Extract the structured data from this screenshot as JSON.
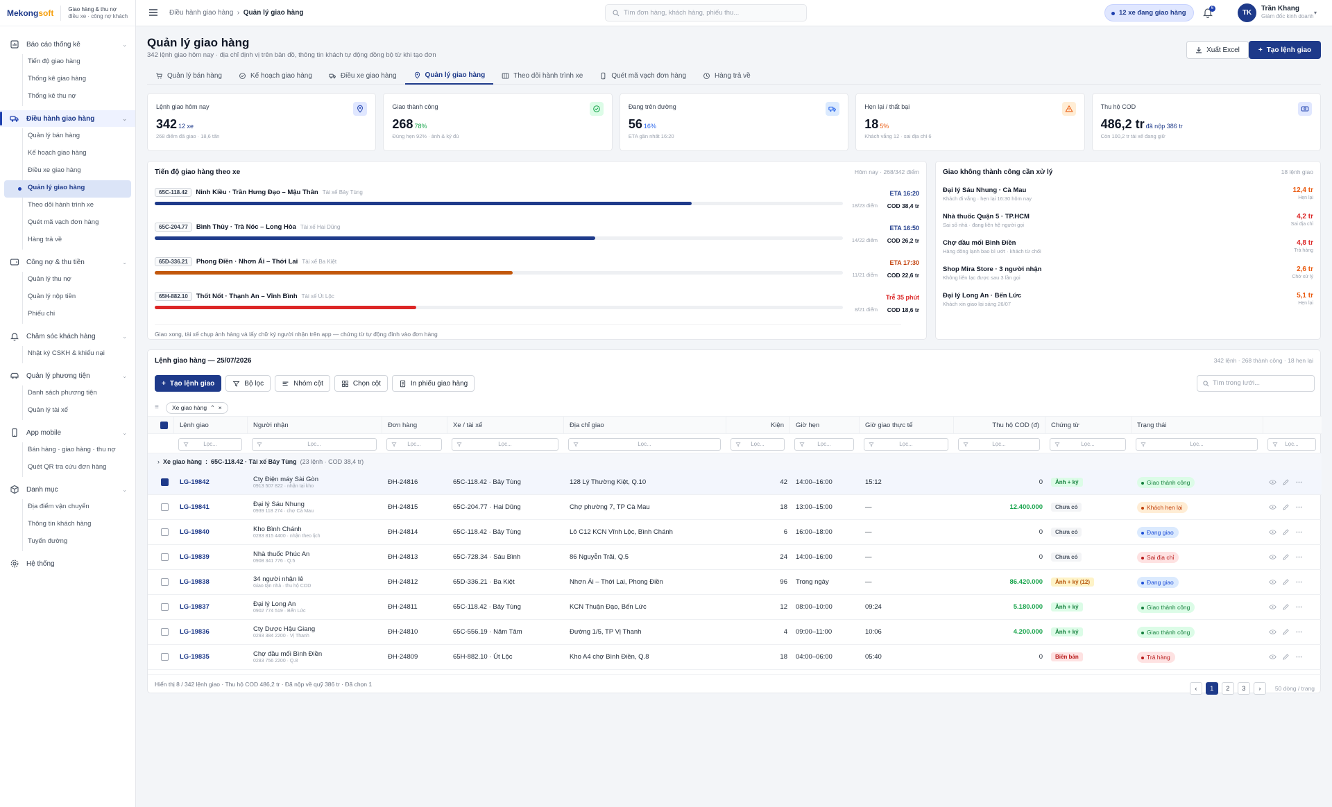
{
  "brand": {
    "logo_a": "Mekong",
    "logo_b": "soft",
    "line1": "Giao hàng & thu nợ",
    "line2": "điều xe · công nợ khách"
  },
  "sidebar": [
    {
      "label": "Báo cáo thống kê",
      "icon": "chart-icon",
      "items": [
        "Tiến độ giao hàng",
        "Thống kê giao hàng",
        "Thống kê thu nợ"
      ]
    },
    {
      "label": "Điều hành giao hàng",
      "icon": "truck-icon",
      "active": true,
      "items": [
        "Quản lý bán hàng",
        "Kế hoạch giao hàng",
        "Điều xe giao hàng",
        "Quản lý giao hàng",
        "Theo dõi hành trình xe",
        "Quét mã vạch đơn hàng",
        "Hàng trả về"
      ],
      "active_item": 3
    },
    {
      "label": "Công nợ & thu tiền",
      "icon": "wallet-icon",
      "items": [
        "Quản lý thu nợ",
        "Quản lý nộp tiền",
        "Phiếu chi"
      ]
    },
    {
      "label": "Chăm sóc khách hàng",
      "icon": "bell-icon",
      "items": [
        "Nhật ký CSKH & khiếu nại"
      ]
    },
    {
      "label": "Quản lý phương tiện",
      "icon": "vehicle-icon",
      "items": [
        "Danh sách phương tiện",
        "Quản lý tài xế"
      ]
    },
    {
      "label": "App mobile",
      "icon": "phone-icon",
      "items": [
        "Bán hàng · giao hàng · thu nợ",
        "Quét QR tra cứu đơn hàng"
      ]
    },
    {
      "label": "Danh mục",
      "icon": "box-icon",
      "items": [
        "Địa điểm vận chuyển",
        "Thông tin khách hàng",
        "Tuyến đường"
      ]
    },
    {
      "label": "Hệ thống",
      "icon": "gear-icon",
      "items": []
    }
  ],
  "topbar": {
    "crumb1": "Điều hành giao hàng",
    "crumb2": "Quản lý giao hàng",
    "search_placeholder": "Tìm đơn hàng, khách hàng, phiếu thu...",
    "live": "12 xe đang giao hàng",
    "bell_count": "6",
    "avatar": "TK",
    "user_name": "Trần Khang",
    "user_role": "Giám đốc kinh doanh"
  },
  "page": {
    "title": "Quản lý giao hàng",
    "subtitle": "342 lệnh giao hôm nay · địa chỉ định vị trên bản đồ, thông tin khách tự động đồng bộ từ khi tạo đơn",
    "export": "Xuất Excel",
    "create": "Tạo lệnh giao"
  },
  "tabs": [
    {
      "label": "Quản lý bán hàng",
      "icon": "cart-icon"
    },
    {
      "label": "Kế hoạch giao hàng",
      "icon": "check-circle-icon"
    },
    {
      "label": "Điều xe giao hàng",
      "icon": "truck-icon"
    },
    {
      "label": "Quản lý giao hàng",
      "icon": "pin-icon",
      "active": true
    },
    {
      "label": "Theo dõi hành trình xe",
      "icon": "map-icon"
    },
    {
      "label": "Quét mã vạch đơn hàng",
      "icon": "phone-icon"
    },
    {
      "label": "Hàng trả về",
      "icon": "return-icon"
    }
  ],
  "kpis": [
    {
      "label": "Lệnh giao hôm nay",
      "value": "342",
      "extra": "12 xe",
      "note": "268 điểm đã giao · 18,6 tấn",
      "extra_color": "#1e3a8a",
      "icon": "pin-icon",
      "icon_bg": "#e0e7ff",
      "icon_color": "#1e40af"
    },
    {
      "label": "Giao thành công",
      "value": "268",
      "extra": "78%",
      "note": "Đúng hẹn 92% · ảnh & ký đủ",
      "extra_color": "#16a34a",
      "icon": "check-circle-icon",
      "icon_bg": "#dcfce7",
      "icon_color": "#16a34a"
    },
    {
      "label": "Đang trên đường",
      "value": "56",
      "extra": "16%",
      "note": "ETA gần nhất 16:20",
      "extra_color": "#2563eb",
      "icon": "truck-icon",
      "icon_bg": "#dbeafe",
      "icon_color": "#2563eb"
    },
    {
      "label": "Hẹn lại / thất bại",
      "value": "18",
      "extra": "5%",
      "note": "Khách vắng 12 · sai địa chỉ 6",
      "extra_color": "#ea580c",
      "icon": "warning-icon",
      "icon_bg": "#ffedd5",
      "icon_color": "#ea580c"
    },
    {
      "label": "Thu hộ COD",
      "value": "486,2 tr",
      "extra": "đã nộp 386 tr",
      "note": "Còn 100,2 tr tài xế đang giữ",
      "extra_color": "#1e3a8a",
      "icon": "money-icon",
      "icon_bg": "#e0e7ff",
      "icon_color": "#1e40af"
    }
  ],
  "progress": {
    "title": "Tiến độ giao hàng theo xe",
    "right": "Hôm nay · 268/342 điểm",
    "footer": "Giao xong, tài xế chụp ảnh hàng và lấy chữ ký người nhận trên app — chứng từ tự động đính vào đơn hàng",
    "routes": [
      {
        "plate": "65C-118.42",
        "name": "Ninh Kiều · Trần Hưng Đạo – Mậu Thân",
        "driver": "Tài xế Bảy Tùng",
        "eta": "ETA 16:20",
        "eta_color": "#1e3a8a",
        "count": "18/23 điểm",
        "cod": "COD 38,4 tr",
        "pct": 0.78,
        "color": "#1e3a8a"
      },
      {
        "plate": "65C-204.77",
        "name": "Bình Thủy · Trà Nóc – Long Hòa",
        "driver": "Tài xế Hai Dũng",
        "eta": "ETA 16:50",
        "eta_color": "#1e3a8a",
        "count": "14/22 điểm",
        "cod": "COD 26,2 tr",
        "pct": 0.64,
        "color": "#1e3a8a"
      },
      {
        "plate": "65D-336.21",
        "name": "Phong Điền · Nhơn Ái – Thới Lai",
        "driver": "Tài xế Ba Kiệt",
        "eta": "ETA 17:30",
        "eta_color": "#c2410c",
        "count": "11/21 điểm",
        "cod": "COD 22,6 tr",
        "pct": 0.52,
        "color": "#c2570c"
      },
      {
        "plate": "65H-882.10",
        "name": "Thốt Nốt · Thạnh An – Vĩnh Bình",
        "driver": "Tài xế Út Lộc",
        "eta": "Trễ 35 phút",
        "eta_color": "#dc2626",
        "count": "8/21 điểm",
        "cod": "COD 18,6 tr",
        "pct": 0.38,
        "color": "#dc2626"
      }
    ]
  },
  "failed": {
    "title": "Giao không thành công cần xử lý",
    "right": "18 lệnh giao",
    "items": [
      {
        "name": "Đại lý Sáu Nhung · Cà Mau",
        "desc": "Khách đi vắng · hẹn lại 16:30 hôm nay",
        "amount": "12,4 tr",
        "status": "Hẹn lại",
        "color": "#ea580c"
      },
      {
        "name": "Nhà thuốc Quận 5 · TP.HCM",
        "desc": "Sai số nhà · đang liên hệ người gọi",
        "amount": "4,2 tr",
        "status": "Sai địa chỉ",
        "color": "#dc2626"
      },
      {
        "name": "Chợ đầu mối Bình Điền",
        "desc": "Hàng đông lạnh bao bì ướt · khách từ chối",
        "amount": "4,8 tr",
        "status": "Trả hàng",
        "color": "#dc2626"
      },
      {
        "name": "Shop Mira Store · 3 người nhận",
        "desc": "Không liên lạc được sau 3 lần gọi",
        "amount": "2,6 tr",
        "status": "Chờ xử lý",
        "color": "#ea580c"
      },
      {
        "name": "Đại lý Long An · Bến Lức",
        "desc": "Khách xin giao lại sáng 26/07",
        "amount": "5,1 tr",
        "status": "Hẹn lại",
        "color": "#ea580c"
      }
    ]
  },
  "grid": {
    "title": "Lệnh giao hàng — 25/07/2026",
    "right": "342 lệnh · 268 thành công · 18 hẹn lại",
    "tools": [
      "Tạo lệnh giao",
      "Bộ lọc",
      "Nhóm cột",
      "Chọn cột",
      "In phiếu giao hàng"
    ],
    "search_placeholder": "Tìm trong lưới...",
    "chip": "Xe giao hàng",
    "filter_placeholder": "Lọc...",
    "columns": [
      "Lệnh giao",
      "Người nhận",
      "Đơn hàng",
      "Xe / tài xế",
      "Địa chỉ giao",
      "Kiện",
      "Giờ hẹn",
      "Giờ giao thực tế",
      "Thu hộ COD (đ)",
      "Chứng từ",
      "Trạng thái"
    ],
    "group": {
      "label": "Xe giao hàng",
      "value": "65C-118.42 · Tài xế Bảy Tùng",
      "meta": "(23 lệnh · COD 38,4 tr)"
    },
    "rows": [
      {
        "id": "LG-19842",
        "name": "Cty Điện máy Sài Gòn",
        "sub": "0913 507 822 · nhận tại kho",
        "order": "ĐH-24816",
        "vehicle": "65C-118.42 · Bảy Tùng",
        "addr": "128 Lý Thường Kiệt, Q.10",
        "qty": "42",
        "appt": "14:00–16:00",
        "actual": "15:12",
        "cod": "0",
        "doc": "Ảnh + ký",
        "status": "Giao thành công",
        "selected": true
      },
      {
        "id": "LG-19841",
        "name": "Đại lý Sáu Nhung",
        "sub": "0939 118 274 · chợ Cà Mau",
        "order": "ĐH-24815",
        "vehicle": "65C-204.77 · Hai Dũng",
        "addr": "Chợ phường 7, TP Cà Mau",
        "qty": "18",
        "appt": "13:00–15:00",
        "actual": "—",
        "cod": "12.400.000",
        "doc": "Chưa có",
        "status": "Khách hẹn lại"
      },
      {
        "id": "LG-19840",
        "name": "Kho Bình Chánh",
        "sub": "0283 815 4400 · nhận theo lịch",
        "order": "ĐH-24814",
        "vehicle": "65C-118.42 · Bảy Tùng",
        "addr": "Lô C12 KCN Vĩnh Lộc, Bình Chánh",
        "qty": "6",
        "appt": "16:00–18:00",
        "actual": "—",
        "cod": "0",
        "doc": "Chưa có",
        "status": "Đang giao"
      },
      {
        "id": "LG-19839",
        "name": "Nhà thuốc Phúc An",
        "sub": "0908 341 776 · Q.5",
        "order": "ĐH-24813",
        "vehicle": "65C-728.34 · Sáu Bình",
        "addr": "86 Nguyễn Trãi, Q.5",
        "qty": "24",
        "appt": "14:00–16:00",
        "actual": "—",
        "cod": "0",
        "doc": "Chưa có",
        "status": "Sai địa chỉ"
      },
      {
        "id": "LG-19838",
        "name": "34 người nhận lẻ",
        "sub": "Giao tận nhà · thu hộ COD",
        "order": "ĐH-24812",
        "vehicle": "65D-336.21 · Ba Kiệt",
        "addr": "Nhơn Ái – Thới Lai, Phong Điền",
        "qty": "96",
        "appt": "Trong ngày",
        "actual": "—",
        "cod": "86.420.000",
        "doc": "Ảnh + ký (12)",
        "status": "Đang giao"
      },
      {
        "id": "LG-19837",
        "name": "Đại lý Long An",
        "sub": "0902 774 519 · Bến Lức",
        "order": "ĐH-24811",
        "vehicle": "65C-118.42 · Bảy Tùng",
        "addr": "KCN Thuận Đạo, Bến Lức",
        "qty": "12",
        "appt": "08:00–10:00",
        "actual": "09:24",
        "cod": "5.180.000",
        "doc": "Ảnh + ký",
        "status": "Giao thành công"
      },
      {
        "id": "LG-19836",
        "name": "Cty Dược Hậu Giang",
        "sub": "0293 384 2200 · Vị Thanh",
        "order": "ĐH-24810",
        "vehicle": "65C-556.19 · Năm Tâm",
        "addr": "Đường 1/5, TP Vị Thanh",
        "qty": "4",
        "appt": "09:00–11:00",
        "actual": "10:06",
        "cod": "4.200.000",
        "doc": "Ảnh + ký",
        "status": "Giao thành công"
      },
      {
        "id": "LG-19835",
        "name": "Chợ đầu mối Bình Điền",
        "sub": "0283 756 2200 · Q.8",
        "order": "ĐH-24809",
        "vehicle": "65H-882.10 · Út Lộc",
        "addr": "Kho A4 chợ Bình Điền, Q.8",
        "qty": "18",
        "appt": "04:00–06:00",
        "actual": "05:40",
        "cod": "0",
        "doc": "Biên bản",
        "status": "Trả hàng"
      }
    ],
    "footer": "Hiển thị 8 / 342 lệnh giao · Thu hộ COD 486,2 tr · Đã nộp về quỹ 386 tr · Đã chọn 1",
    "pages": [
      "‹",
      "1",
      "2",
      "3",
      "›"
    ],
    "page_size": "50 dòng / trang"
  },
  "colors": {
    "accent": "#1e3a8a",
    "success": "#16a34a",
    "warning": "#ea580c",
    "danger": "#dc2626"
  }
}
